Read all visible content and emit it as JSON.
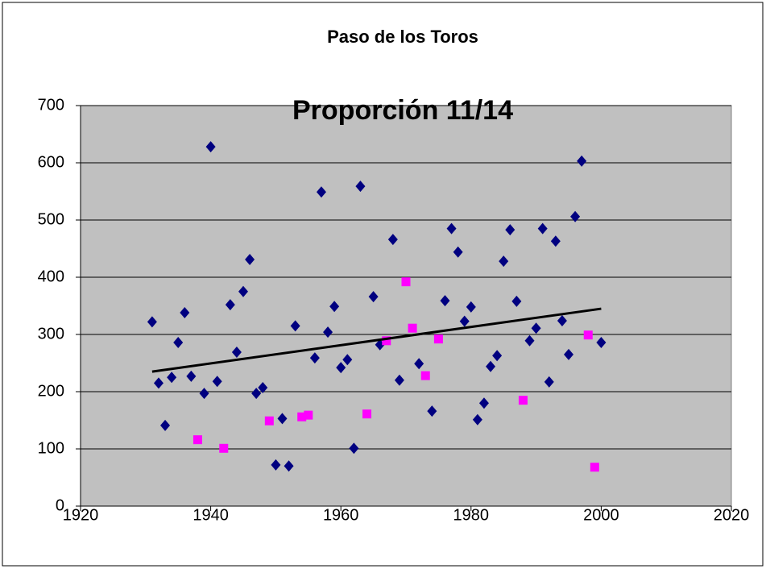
{
  "chart_data": {
    "type": "scatter",
    "title": "Paso de los Toros",
    "subtitle": "Proporción 11/14",
    "xlim": [
      1920,
      2020
    ],
    "xticks": [
      1920,
      1940,
      1960,
      1980,
      2000,
      2020
    ],
    "ylim": [
      0,
      700
    ],
    "yticks": [
      0,
      100,
      200,
      300,
      400,
      500,
      600,
      700
    ],
    "grid": true,
    "series": [
      {
        "color": "#000080",
        "marker": "diamond",
        "x": [
          1931,
          1932,
          1933,
          1934,
          1935,
          1936,
          1937,
          1939,
          1940,
          1941,
          1943,
          1944,
          1945,
          1946,
          1947,
          1948,
          1950,
          1951,
          1952,
          1953,
          1956,
          1957,
          1958,
          1959,
          1960,
          1961,
          1962,
          1963,
          1965,
          1966,
          1968,
          1969,
          1972,
          1974,
          1976,
          1977,
          1978,
          1979,
          1980,
          1981,
          1982,
          1983,
          1984,
          1985,
          1986,
          1987,
          1989,
          1990,
          1991,
          1992,
          1993,
          1994,
          1995,
          1996,
          1997,
          2000
        ],
        "values": [
          322,
          215,
          141,
          225,
          286,
          338,
          227,
          197,
          628,
          218,
          352,
          269,
          375,
          431,
          197,
          207,
          72,
          153,
          70,
          315,
          259,
          549,
          304,
          349,
          242,
          256,
          101,
          559,
          366,
          282,
          466,
          220,
          249,
          166,
          359,
          485,
          444,
          323,
          348,
          151,
          180,
          244,
          263,
          428,
          483,
          358,
          289,
          311,
          485,
          217,
          463,
          324,
          265,
          506,
          603,
          286
        ]
      },
      {
        "color": "#ff00ff",
        "marker": "square",
        "x": [
          1938,
          1942,
          1949,
          1954,
          1955,
          1964,
          1967,
          1970,
          1971,
          1973,
          1975,
          1988,
          1998,
          1999
        ],
        "values": [
          116,
          101,
          149,
          156,
          159,
          161,
          289,
          392,
          311,
          228,
          292,
          185,
          299,
          68
        ]
      },
      {
        "color": "#000000",
        "marker": "line",
        "x": [
          1931,
          2000
        ],
        "values": [
          235,
          345
        ]
      }
    ]
  }
}
